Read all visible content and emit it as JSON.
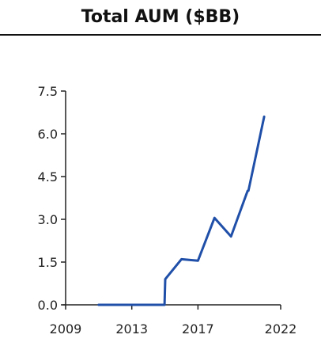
{
  "chart_data": {
    "type": "line",
    "title": "Total AUM ($BB)",
    "xlabel": "",
    "ylabel": "",
    "xlim": [
      2009,
      2022
    ],
    "ylim": [
      0,
      7.5
    ],
    "xticks": [
      2009,
      2013,
      2017,
      2022
    ],
    "xtick_labels": [
      "2009",
      "2013",
      "2017",
      "2022"
    ],
    "yticks": [
      0,
      1.5,
      3,
      4.5,
      6,
      7.5
    ],
    "ytick_labels": [
      "0.0",
      "1.5",
      "3.0",
      "4.5",
      "6.0",
      "7.5"
    ],
    "grid": false,
    "legend": "none",
    "line_color": "#1f4fa8",
    "series": [
      {
        "x": [
          2011,
          2012,
          2013,
          2014,
          2014.98,
          2015.02,
          2016,
          2017,
          2018,
          2019,
          2020,
          2020.05,
          2021
        ],
        "values": [
          0.0,
          0.0,
          0.0,
          0.0,
          0.0,
          0.9,
          1.6,
          1.55,
          3.05,
          2.4,
          4.0,
          4.0,
          6.6
        ]
      }
    ]
  }
}
